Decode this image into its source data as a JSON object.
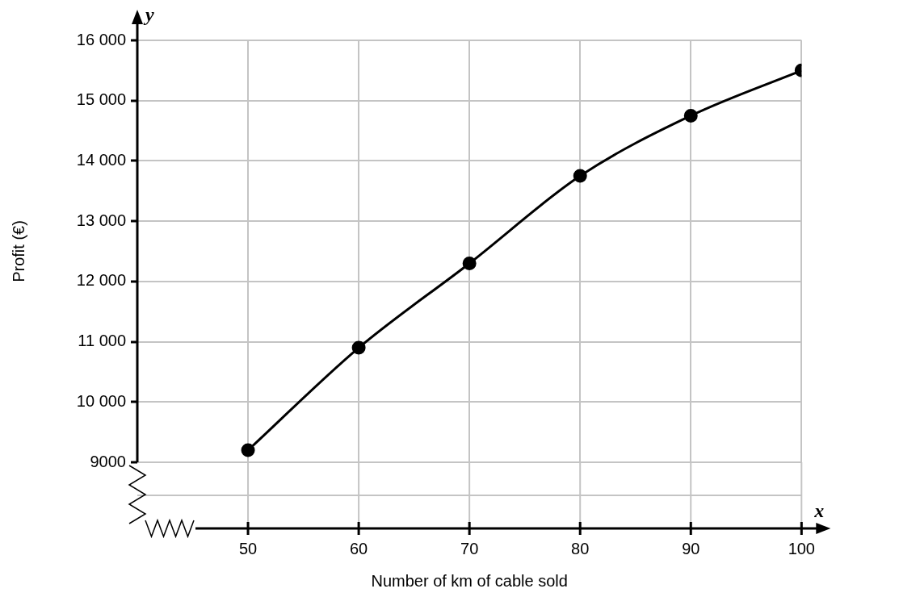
{
  "chart_data": {
    "type": "line",
    "xlabel": "Number of km of cable sold",
    "ylabel": "Profit (€)",
    "x": [
      50,
      60,
      70,
      80,
      90,
      100
    ],
    "series": [
      {
        "color": "#000000",
        "values": [
          9200,
          10900,
          12300,
          13750,
          14750,
          15500
        ]
      }
    ],
    "xlim": [
      40,
      100
    ],
    "xticks": [
      50,
      60,
      70,
      80,
      90,
      100
    ],
    "ylim": [
      9000,
      16000
    ],
    "yticks": [
      {
        "value": 9000,
        "label": "9000"
      },
      {
        "value": 10000,
        "label": "10 000"
      },
      {
        "value": 11000,
        "label": "11 000"
      },
      {
        "value": 12000,
        "label": "12 000"
      },
      {
        "value": 13000,
        "label": "13 000"
      },
      {
        "value": 14000,
        "label": "14 000"
      },
      {
        "value": 15000,
        "label": "15 000"
      },
      {
        "value": 16000,
        "label": "16 000"
      }
    ],
    "annotations": [
      "x",
      "y"
    ],
    "grid": true,
    "marker": "circle",
    "line_style": "solid"
  }
}
